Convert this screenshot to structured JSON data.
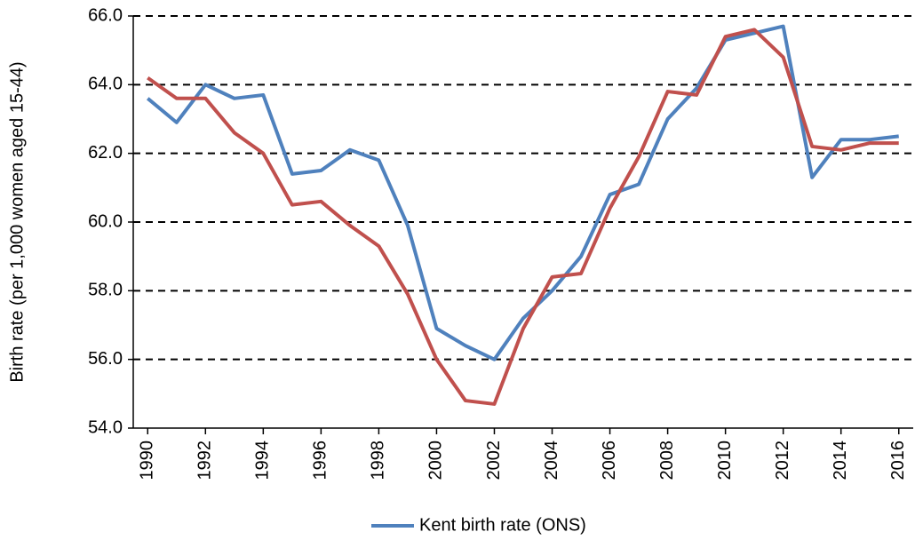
{
  "chart_data": {
    "type": "line",
    "y_label": "Birth rate (per 1,000 women aged 15-44)",
    "x": [
      1990,
      1991,
      1992,
      1993,
      1994,
      1995,
      1996,
      1997,
      1998,
      1999,
      2000,
      2001,
      2002,
      2003,
      2004,
      2005,
      2006,
      2007,
      2008,
      2009,
      2010,
      2011,
      2012,
      2013,
      2014,
      2015,
      2016
    ],
    "series": [
      {
        "name": "Kent birth rate (ONS)",
        "color": "#4f81bd",
        "values": [
          63.6,
          62.9,
          64.0,
          63.6,
          63.7,
          61.4,
          61.5,
          62.1,
          61.8,
          59.9,
          56.9,
          56.4,
          56.0,
          57.2,
          58.0,
          59.0,
          60.8,
          61.1,
          63.0,
          63.9,
          65.3,
          65.5,
          65.7,
          61.3,
          62.4,
          62.4,
          62.5
        ]
      },
      {
        "color": "#c0504d",
        "values": [
          64.2,
          63.6,
          63.6,
          62.6,
          62.0,
          60.5,
          60.6,
          59.9,
          59.3,
          57.9,
          56.0,
          54.8,
          54.7,
          56.9,
          58.4,
          58.5,
          60.4,
          61.9,
          63.8,
          63.7,
          65.4,
          65.6,
          64.8,
          62.2,
          62.1,
          62.3,
          62.3
        ]
      }
    ],
    "xlim": [
      1989.5,
      2016.5
    ],
    "xticks": [
      1990,
      1992,
      1994,
      1996,
      1998,
      2000,
      2002,
      2004,
      2006,
      2008,
      2010,
      2012,
      2014,
      2016
    ],
    "ylim": [
      54,
      66
    ],
    "yticks": [
      {
        "value": 54,
        "label": "54.0"
      },
      {
        "value": 56,
        "label": "56.0"
      },
      {
        "value": 58,
        "label": "58.0"
      },
      {
        "value": 60,
        "label": "60.0"
      },
      {
        "value": 62,
        "label": "62.0"
      },
      {
        "value": 64,
        "label": "64.0"
      },
      {
        "value": 66,
        "label": "66.0"
      }
    ],
    "grid": true,
    "legend": "bottom"
  }
}
